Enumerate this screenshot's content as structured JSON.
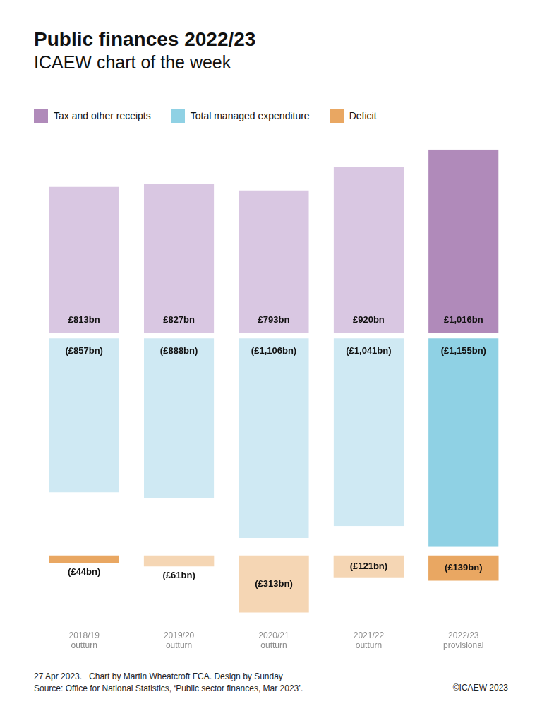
{
  "chart_data": {
    "type": "bar",
    "title": "Public finances 2022/23",
    "subtitle": "ICAEW chart of the week",
    "categories": [
      "2018/19 outturn",
      "2019/20 outturn",
      "2020/21 outturn",
      "2021/22 outturn",
      "2022/23 provisional"
    ],
    "series": [
      {
        "name": "Tax and other receipts",
        "color": "#b08aba",
        "colors": [
          "#d9c7e2",
          "#d9c7e2",
          "#d9c7e2",
          "#d9c7e2",
          "#b08aba"
        ],
        "values": [
          813,
          827,
          793,
          920,
          1016
        ],
        "value_labels": [
          "£813bn",
          "£827bn",
          "£793bn",
          "£920bn",
          "£1,016bn"
        ]
      },
      {
        "name": "Total managed expenditure",
        "color": "#8fd1e4",
        "colors": [
          "#cfe9f3",
          "#cfe9f3",
          "#cfe9f3",
          "#cfe9f3",
          "#8fd1e4"
        ],
        "values": [
          -857,
          -888,
          -1106,
          -1041,
          -1155
        ],
        "value_labels": [
          "(£857bn)",
          "(£888bn)",
          "(£1,106bn)",
          "(£1,041bn)",
          "(£1,155bn)"
        ]
      },
      {
        "name": "Deficit",
        "color": "#e9a762",
        "axis": "y2",
        "colors": [
          "#e9a762",
          "#f5d6b4",
          "#f5d6b4",
          "#f5d6b4",
          "#e9a762"
        ],
        "values": [
          -44,
          -61,
          -313,
          -121,
          -139
        ],
        "value_labels": [
          "(£44bn)",
          "(£61bn)",
          "(£313bn)",
          "(£121bn)",
          "(£139bn)"
        ]
      }
    ],
    "stacked": true,
    "data_labels": true,
    "legend": "top-left",
    "grid": false,
    "tick_labels": "x",
    "ylim": [
      -1200,
      1100
    ],
    "y2lim": [
      -350,
      0
    ],
    "notes": [
      "27 Apr 2023.   Chart by Martin Wheatcroft FCA. Design by Sunday",
      "Source: Office for National Statistics, ‘Public sector finances, Mar 2023’."
    ],
    "copyright": "©ICAEW 2023"
  }
}
